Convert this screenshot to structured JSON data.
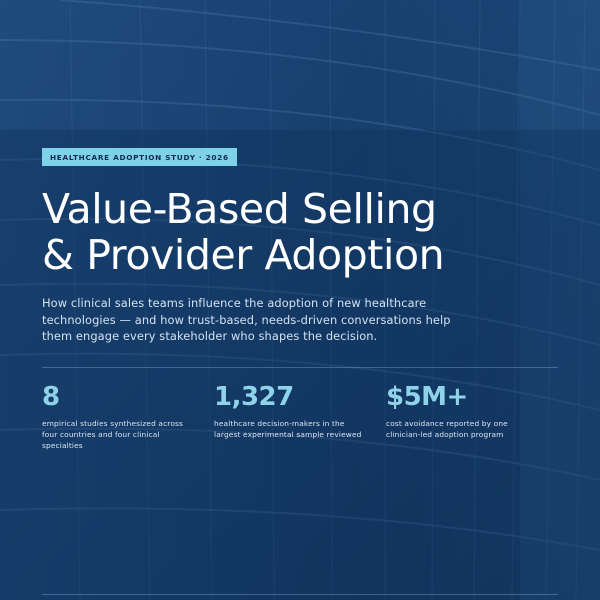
{
  "cover": {
    "tag": "HEALTHCARE ADOPTION STUDY · 2026",
    "title_line1": "Value-Based Selling",
    "title_line2": "& Provider Adoption",
    "subtitle": "How clinical sales teams influence the adoption of new healthcare technologies — and how trust-based, needs-driven conversations help them engage every stakeholder who shapes the decision."
  },
  "stats": [
    {
      "value": "8",
      "label": "empirical studies synthesized across four countries and four clinical specialties"
    },
    {
      "value": "1,327",
      "label": "healthcare decision-makers in the largest experimental sample reviewed"
    },
    {
      "value": "$5M+",
      "label": "cost avoidance reported by one clinician-led adoption program"
    }
  ],
  "colors": {
    "background": "#123864",
    "accent": "#7ed1e6",
    "stat_value": "#8fd3e8",
    "text": "#ffffff"
  }
}
